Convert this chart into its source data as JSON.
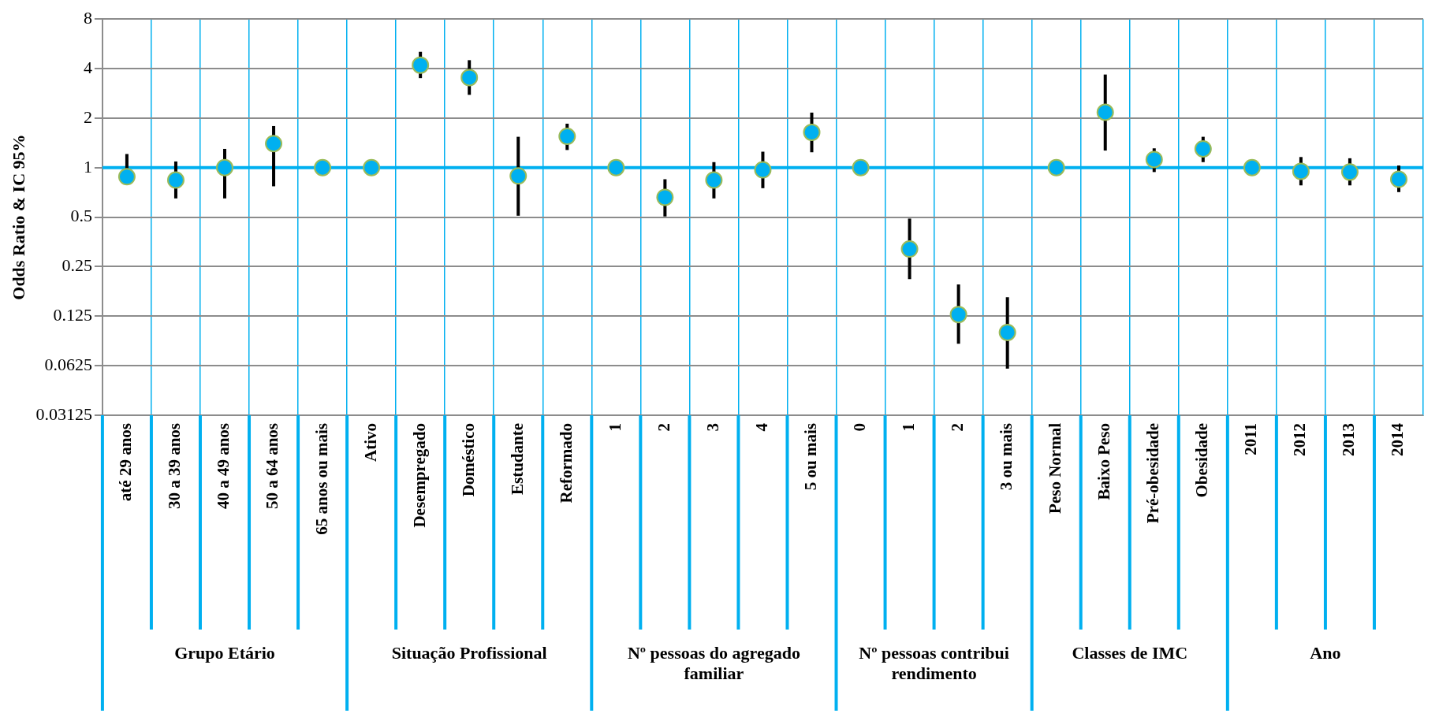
{
  "chart_data": {
    "type": "scatter",
    "ylabel": "Odds Ratio & IC 95%",
    "categories": [
      "até 29 anos",
      "30 a 39 anos",
      "40 a 49 anos",
      "50 a 64 anos",
      "65 anos ou mais",
      "Ativo",
      "Desempregado",
      "Doméstico",
      "Estudante",
      "Reformado",
      "1",
      "2",
      "3",
      "4",
      "5 ou mais",
      "0",
      "1",
      "2",
      "3 ou mais",
      "Peso Normal",
      "Baixo Peso",
      "Pré-obesidade",
      "Obesidade",
      "2011",
      "2012",
      "2013",
      "2014"
    ],
    "values": [
      0.88,
      0.84,
      1.0,
      1.4,
      1.0,
      1.0,
      4.2,
      3.53,
      0.89,
      1.55,
      1.0,
      0.66,
      0.84,
      0.97,
      1.64,
      1.0,
      0.32,
      0.128,
      0.0995,
      1.0,
      2.17,
      1.12,
      1.3,
      1.0,
      0.95,
      0.94,
      0.85
    ],
    "errors": [
      [
        0.82,
        1.21
      ],
      [
        0.65,
        1.09
      ],
      [
        0.65,
        1.3
      ],
      [
        0.77,
        1.79
      ],
      null,
      null,
      [
        3.5,
        5.06
      ],
      [
        2.77,
        4.5
      ],
      [
        0.51,
        1.54
      ],
      [
        1.28,
        1.85
      ],
      null,
      [
        0.505,
        0.85
      ],
      [
        0.65,
        1.08
      ],
      [
        0.75,
        1.25
      ],
      [
        1.24,
        2.16
      ],
      null,
      [
        0.21,
        0.49
      ],
      [
        0.085,
        0.195
      ],
      [
        0.06,
        0.163
      ],
      null,
      [
        1.27,
        3.68
      ],
      [
        0.94,
        1.31
      ],
      [
        1.08,
        1.54
      ],
      null,
      [
        0.78,
        1.16
      ],
      [
        0.78,
        1.14
      ],
      [
        0.71,
        1.03
      ]
    ],
    "color": "#00b0f0",
    "marker": "circle",
    "log": "y",
    "grid": true,
    "legend": false,
    "ylim": [
      0.03125,
      8
    ],
    "yticks": [
      0.03125,
      0.0625,
      0.125,
      0.25,
      0.5,
      1,
      2,
      4,
      8
    ],
    "ref_lines": [
      {
        "axis": "y",
        "value": 1,
        "color": "#00b0f0"
      }
    ],
    "annotations": [
      "Grupo Etário",
      "Situação Profissional",
      "Nº pessoas do agregado familiar",
      "Nº pessoas contribui rendimento",
      "Classes de IMC",
      "Ano"
    ]
  }
}
